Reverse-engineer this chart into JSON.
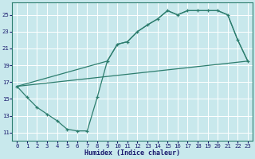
{
  "bg_color": "#c8e8ec",
  "grid_color": "#ffffff",
  "line_color": "#2d7d6e",
  "xlabel": "Humidex (Indice chaleur)",
  "xlim": [
    -0.5,
    23.5
  ],
  "ylim": [
    10.0,
    26.5
  ],
  "xticks": [
    0,
    1,
    2,
    3,
    4,
    5,
    6,
    7,
    8,
    9,
    10,
    11,
    12,
    13,
    14,
    15,
    16,
    17,
    18,
    19,
    20,
    21,
    22,
    23
  ],
  "yticks": [
    11,
    13,
    15,
    17,
    19,
    21,
    23,
    25
  ],
  "curve1_x": [
    0,
    1,
    2,
    3,
    4,
    5,
    6,
    7,
    8,
    9,
    10,
    11,
    12,
    13,
    14,
    15,
    16,
    17,
    18,
    19,
    20,
    21,
    22,
    23
  ],
  "curve1_y": [
    16.5,
    15.2,
    14.0,
    13.2,
    12.4,
    11.4,
    11.2,
    11.2,
    15.2,
    19.5,
    21.5,
    21.8,
    23.0,
    23.8,
    24.5,
    25.5,
    25.0,
    25.5,
    25.5,
    25.5,
    25.5,
    25.0,
    22.0,
    19.5
  ],
  "curve2_x": [
    0,
    23
  ],
  "curve2_y": [
    16.5,
    19.5
  ],
  "curve3_x": [
    0,
    9,
    10,
    11,
    12,
    13,
    14,
    15,
    16,
    17,
    18,
    19,
    20,
    21,
    22,
    23
  ],
  "curve3_y": [
    16.5,
    19.5,
    21.5,
    21.8,
    23.0,
    23.8,
    24.5,
    25.5,
    25.0,
    25.5,
    25.5,
    25.5,
    25.5,
    25.0,
    22.0,
    19.5
  ],
  "xlabel_color": "#1a1a6e",
  "tick_color": "#1a1a6e",
  "xlabel_fontsize": 6.0,
  "tick_fontsize": 5.2
}
